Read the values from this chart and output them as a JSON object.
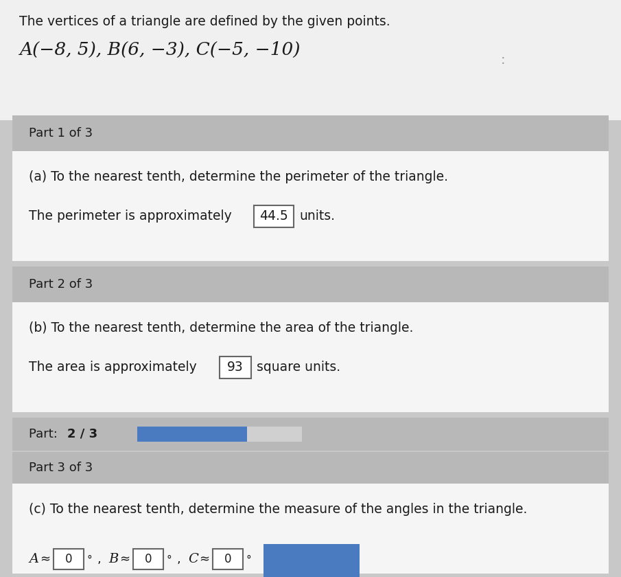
{
  "page_bg": "#c8c8c8",
  "top_bg": "#f0f0f0",
  "header_bg": "#b8b8b8",
  "white_bg": "#f5f5f5",
  "intro_text": "The vertices of a triangle are defined by the given points.",
  "points_text": "A(−8, 5), B(6, −3), C(−5, −10)",
  "part1_header": "Part 1 of 3",
  "part1_question": "(a) To the nearest tenth, determine the perimeter of the triangle.",
  "part1_answer_pre": "The perimeter is approximately",
  "part1_answer_val": "44.5",
  "part1_answer_post": "units.",
  "part2_header": "Part 2 of 3",
  "part2_question": "(b) To the nearest tenth, determine the area of the triangle.",
  "part2_answer_pre": "The area is approximately",
  "part2_answer_val": "93",
  "part2_answer_post": "square units.",
  "part3_header": "Part 3 of 3",
  "part3_question": "(c) To the nearest tenth, determine the measure of the angles in the triangle.",
  "progress_filled": "#4a7abf",
  "progress_empty": "#d0d0d0",
  "button_color": "#4a7abf",
  "box_border": "#666666",
  "text_color": "#1a1a1a",
  "figw": 9.05,
  "figh": 8.4,
  "dpi": 100
}
